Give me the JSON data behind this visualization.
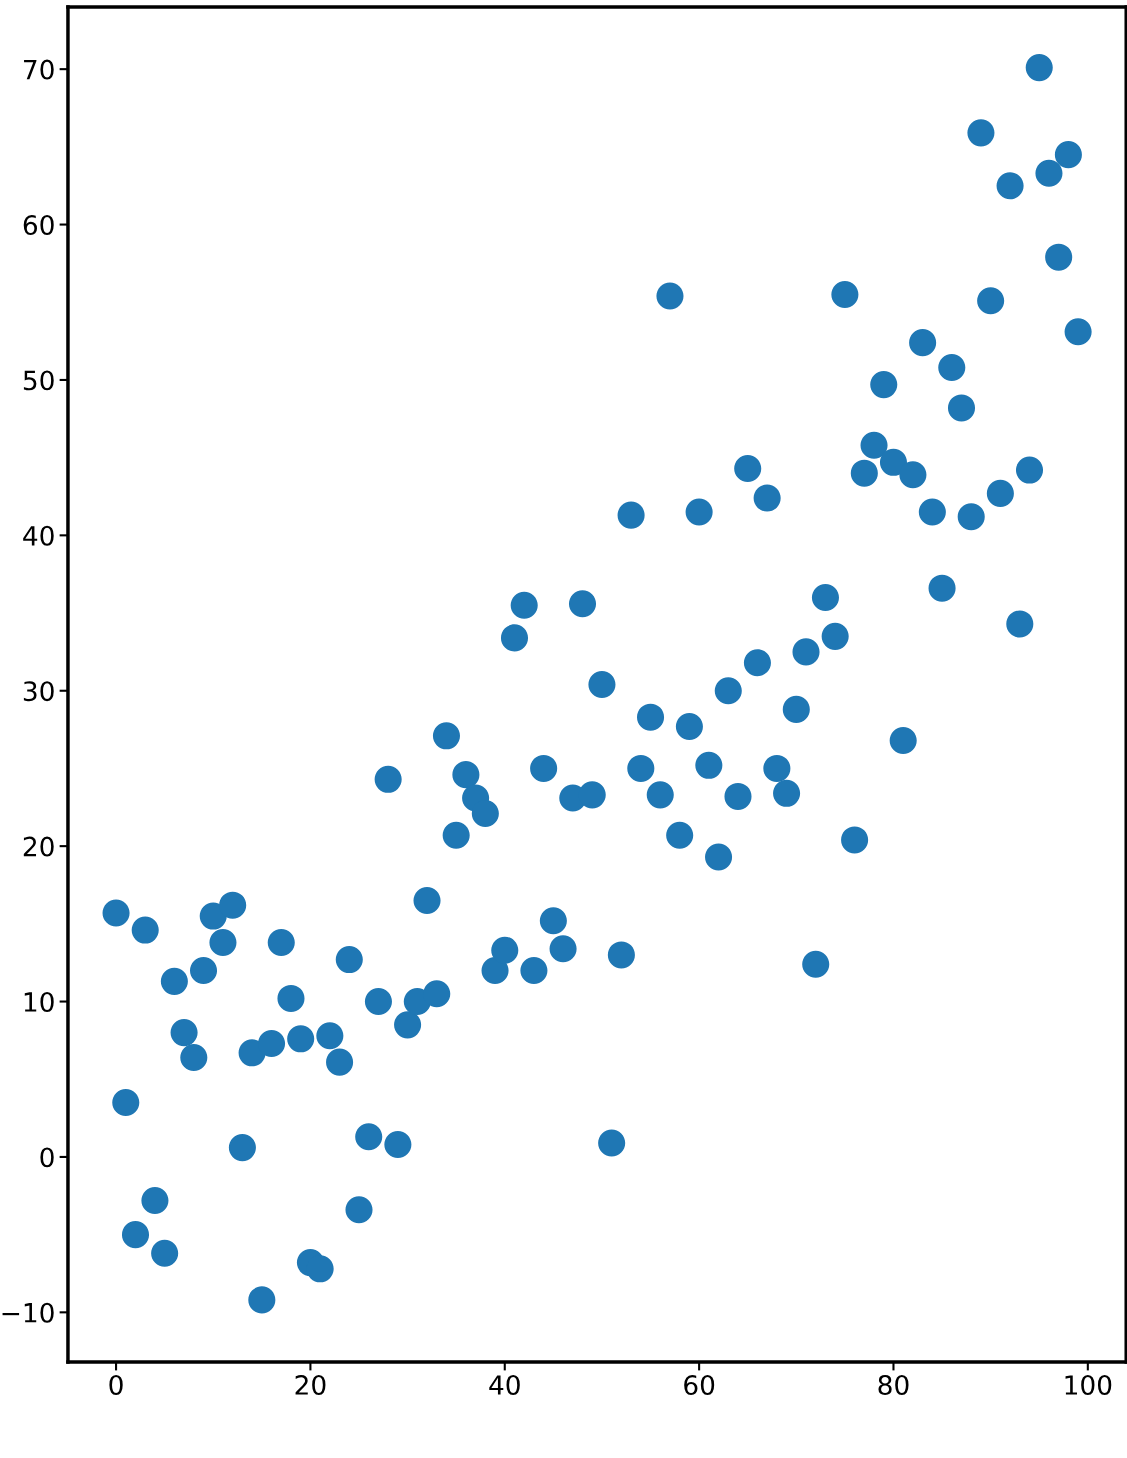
{
  "chart_data": {
    "type": "scatter",
    "color": "#1f77b4",
    "marker": "circle",
    "grid": false,
    "x": [
      0,
      1,
      2,
      3,
      4,
      5,
      6,
      7,
      8,
      9,
      10,
      11,
      12,
      13,
      14,
      15,
      16,
      17,
      18,
      19,
      20,
      21,
      22,
      23,
      24,
      25,
      26,
      27,
      28,
      29,
      30,
      31,
      32,
      33,
      34,
      35,
      36,
      37,
      38,
      39,
      40,
      41,
      42,
      43,
      44,
      45,
      46,
      47,
      48,
      49,
      50,
      51,
      52,
      53,
      54,
      55,
      56,
      57,
      58,
      59,
      60,
      61,
      62,
      63,
      64,
      65,
      66,
      67,
      68,
      69,
      70,
      71,
      72,
      73,
      74,
      75,
      76,
      77,
      78,
      79,
      80,
      81,
      82,
      83,
      84,
      85,
      86,
      87,
      88,
      89,
      90,
      91,
      92,
      93,
      94,
      95,
      96,
      97,
      98,
      99
    ],
    "values": [
      15.7,
      3.5,
      -5.0,
      14.6,
      -2.8,
      -6.2,
      11.3,
      8.0,
      6.4,
      12.0,
      15.5,
      13.8,
      16.2,
      0.6,
      6.7,
      -9.2,
      7.3,
      13.8,
      10.2,
      7.6,
      -6.8,
      -7.2,
      7.8,
      6.1,
      12.7,
      -3.4,
      1.3,
      10.0,
      24.3,
      0.8,
      8.5,
      10.0,
      16.5,
      10.5,
      27.1,
      20.7,
      24.6,
      23.1,
      22.1,
      12.0,
      13.3,
      33.4,
      35.5,
      12.0,
      25.0,
      15.2,
      13.4,
      23.1,
      35.6,
      23.3,
      30.4,
      0.9,
      13.0,
      41.3,
      25.0,
      28.3,
      23.3,
      55.4,
      20.7,
      27.7,
      41.5,
      25.2,
      19.3,
      30.0,
      23.2,
      44.3,
      31.8,
      42.4,
      25.0,
      23.4,
      28.8,
      32.5,
      12.4,
      36.0,
      33.5,
      55.5,
      20.4,
      44.0,
      45.8,
      49.7,
      44.7,
      26.8,
      43.9,
      52.4,
      41.5,
      36.6,
      50.8,
      48.2,
      41.2,
      65.9,
      55.1,
      42.7,
      62.5,
      34.3,
      44.2,
      70.1,
      63.3,
      57.9,
      64.5,
      53.1
    ],
    "xlim": [
      -4.95,
      103.95
    ],
    "ylim": [
      -13.2,
      74.0
    ],
    "xticks": [
      0,
      20,
      40,
      60,
      80,
      100
    ],
    "yticks": [
      {
        "value": -10,
        "label": "−10"
      },
      0,
      10,
      20,
      30,
      40,
      50,
      60,
      70
    ]
  }
}
